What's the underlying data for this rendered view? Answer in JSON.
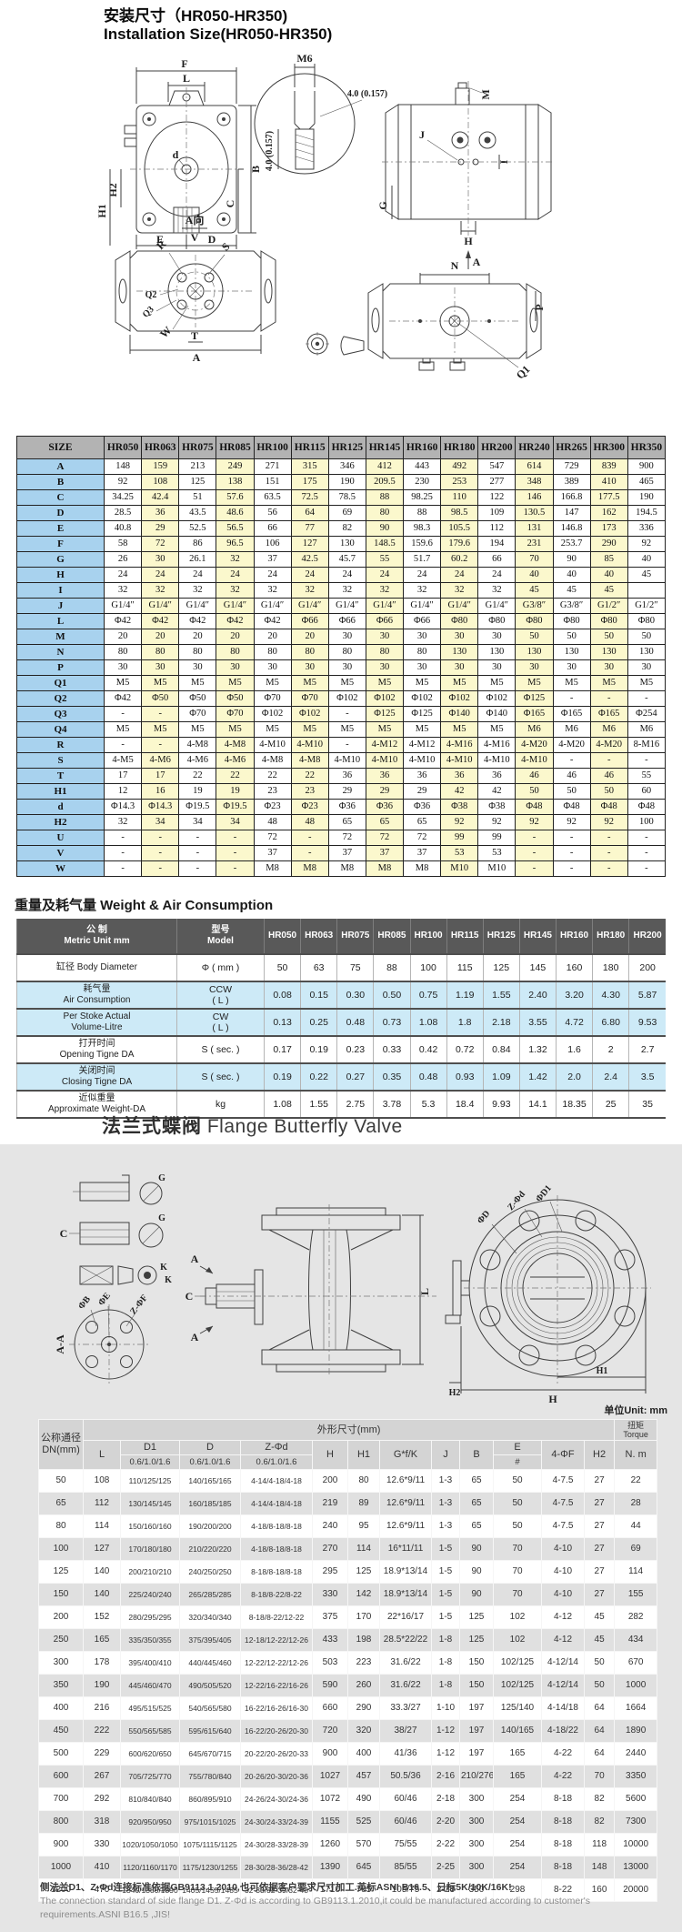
{
  "page": {
    "title_cn": "安装尺寸（HR050-HR350)",
    "title_en": "Installation Size(HR050-HR350)"
  },
  "colors": {
    "table_header_gray": "#b3b3b3",
    "row_label_blue": "#a8d2ee",
    "cell_yellow": "#fbf8cd",
    "weight_header_dark": "#595959",
    "weight_row_blue": "#cdeaf7",
    "panel_gray": "#e5e5e5",
    "dn_stripe_gray": "#e0e0e0"
  },
  "install_drawing": {
    "labels": {
      "f": "F",
      "l": "L",
      "b": "B",
      "c": "C",
      "d": "d",
      "h1": "H1",
      "h2": "H2",
      "e": "E",
      "dcol": "D",
      "m6": "M6",
      "dim": "4.0 (0.157)",
      "m": "M",
      "j": "J",
      "i": "I",
      "g": "G",
      "h": "H",
      "a": "A",
      "aview": "A向",
      "v": "V",
      "r": "R",
      "s": "S",
      "q1": "Q1",
      "q2": "Q2",
      "q3": "Q3",
      "w": "W",
      "t": "T",
      "n": "N",
      "p": "P"
    }
  },
  "size_table": {
    "header": [
      "SIZE",
      "HR050",
      "HR063",
      "HR075",
      "HR085",
      "HR100",
      "HR115",
      "HR125",
      "HR145",
      "HR160",
      "HR180",
      "HR200",
      "HR240",
      "HR265",
      "HR300",
      "HR350"
    ],
    "rows": [
      {
        "label": "A",
        "values": [
          "148",
          "159",
          "213",
          "249",
          "271",
          "315",
          "346",
          "412",
          "443",
          "492",
          "547",
          "614",
          "729",
          "839",
          "900"
        ]
      },
      {
        "label": "B",
        "values": [
          "92",
          "108",
          "125",
          "138",
          "151",
          "175",
          "190",
          "209.5",
          "230",
          "253",
          "277",
          "348",
          "389",
          "410",
          "465"
        ]
      },
      {
        "label": "C",
        "values": [
          "34.25",
          "42.4",
          "51",
          "57.6",
          "63.5",
          "72.5",
          "78.5",
          "88",
          "98.25",
          "110",
          "122",
          "146",
          "166.8",
          "177.5",
          "190"
        ]
      },
      {
        "label": "D",
        "values": [
          "28.5",
          "36",
          "43.5",
          "48.6",
          "56",
          "64",
          "69",
          "80",
          "88",
          "98.5",
          "109",
          "130.5",
          "147",
          "162",
          "194.5"
        ]
      },
      {
        "label": "E",
        "values": [
          "40.8",
          "29",
          "52.5",
          "56.5",
          "66",
          "77",
          "82",
          "90",
          "98.3",
          "105.5",
          "112",
          "131",
          "146.8",
          "173",
          "336"
        ]
      },
      {
        "label": "F",
        "values": [
          "58",
          "72",
          "86",
          "96.5",
          "106",
          "127",
          "130",
          "148.5",
          "159.6",
          "179.6",
          "194",
          "231",
          "253.7",
          "290",
          "92"
        ]
      },
      {
        "label": "G",
        "values": [
          "26",
          "30",
          "26.1",
          "32",
          "37",
          "42.5",
          "45.7",
          "55",
          "51.7",
          "60.2",
          "66",
          "70",
          "90",
          "85",
          "40"
        ]
      },
      {
        "label": "H",
        "values": [
          "24",
          "24",
          "24",
          "24",
          "24",
          "24",
          "24",
          "24",
          "24",
          "24",
          "24",
          "40",
          "40",
          "40",
          "45"
        ]
      },
      {
        "label": "I",
        "values": [
          "32",
          "32",
          "32",
          "32",
          "32",
          "32",
          "32",
          "32",
          "32",
          "32",
          "32",
          "45",
          "45",
          "45",
          ""
        ]
      },
      {
        "label": "J",
        "values": [
          "G1/4″",
          "G1/4″",
          "G1/4″",
          "G1/4″",
          "G1/4″",
          "G1/4″",
          "G1/4″",
          "G1/4″",
          "G1/4″",
          "G1/4″",
          "G1/4″",
          "G3/8″",
          "G3/8″",
          "G1/2″",
          "G1/2″"
        ]
      },
      {
        "label": "L",
        "values": [
          "Φ42",
          "Φ42",
          "Φ42",
          "Φ42",
          "Φ42",
          "Φ66",
          "Φ66",
          "Φ66",
          "Φ66",
          "Φ80",
          "Φ80",
          "Φ80",
          "Φ80",
          "Φ80",
          "Φ80"
        ]
      },
      {
        "label": "M",
        "values": [
          "20",
          "20",
          "20",
          "20",
          "20",
          "20",
          "30",
          "30",
          "30",
          "30",
          "30",
          "50",
          "50",
          "50",
          "50"
        ]
      },
      {
        "label": "N",
        "values": [
          "80",
          "80",
          "80",
          "80",
          "80",
          "80",
          "80",
          "80",
          "80",
          "130",
          "130",
          "130",
          "130",
          "130",
          "130"
        ]
      },
      {
        "label": "P",
        "values": [
          "30",
          "30",
          "30",
          "30",
          "30",
          "30",
          "30",
          "30",
          "30",
          "30",
          "30",
          "30",
          "30",
          "30",
          "30"
        ]
      },
      {
        "label": "Q1",
        "values": [
          "M5",
          "M5",
          "M5",
          "M5",
          "M5",
          "M5",
          "M5",
          "M5",
          "M5",
          "M5",
          "M5",
          "M5",
          "M5",
          "M5",
          "M5"
        ]
      },
      {
        "label": "Q2",
        "values": [
          "Φ42",
          "Φ50",
          "Φ50",
          "Φ50",
          "Φ70",
          "Φ70",
          "Φ102",
          "Φ102",
          "Φ102",
          "Φ102",
          "Φ102",
          "Φ125",
          "-",
          "-",
          "-"
        ]
      },
      {
        "label": "Q3",
        "values": [
          "-",
          "-",
          "Φ70",
          "Φ70",
          "Φ102",
          "Φ102",
          "-",
          "Φ125",
          "Φ125",
          "Φ140",
          "Φ140",
          "Φ165",
          "Φ165",
          "Φ165",
          "Φ254"
        ]
      },
      {
        "label": "Q4",
        "values": [
          "M5",
          "M5",
          "M5",
          "M5",
          "M5",
          "M5",
          "M5",
          "M5",
          "M5",
          "M5",
          "M5",
          "M6",
          "M6",
          "M6",
          "M6"
        ]
      },
      {
        "label": "R",
        "values": [
          "-",
          "-",
          "4-M8",
          "4-M8",
          "4-M10",
          "4-M10",
          "-",
          "4-M12",
          "4-M12",
          "4-M16",
          "4-M16",
          "4-M20",
          "4-M20",
          "4-M20",
          "8-M16"
        ]
      },
      {
        "label": "S",
        "values": [
          "4-M5",
          "4-M6",
          "4-M6",
          "4-M6",
          "4-M8",
          "4-M8",
          "4-M10",
          "4-M10",
          "4-M10",
          "4-M10",
          "4-M10",
          "4-M10",
          "-",
          "-",
          "-"
        ]
      },
      {
        "label": "T",
        "values": [
          "17",
          "17",
          "22",
          "22",
          "22",
          "22",
          "36",
          "36",
          "36",
          "36",
          "36",
          "46",
          "46",
          "46",
          "55"
        ]
      },
      {
        "label": "H1",
        "values": [
          "12",
          "16",
          "19",
          "19",
          "23",
          "23",
          "29",
          "29",
          "29",
          "42",
          "42",
          "50",
          "50",
          "50",
          "60"
        ]
      },
      {
        "label": "d",
        "values": [
          "Φ14.3",
          "Φ14.3",
          "Φ19.5",
          "Φ19.5",
          "Φ23",
          "Φ23",
          "Φ36",
          "Φ36",
          "Φ36",
          "Φ38",
          "Φ38",
          "Φ48",
          "Φ48",
          "Φ48",
          "Φ48"
        ]
      },
      {
        "label": "H2",
        "values": [
          "32",
          "34",
          "34",
          "34",
          "48",
          "48",
          "65",
          "65",
          "65",
          "92",
          "92",
          "92",
          "92",
          "92",
          "100"
        ]
      },
      {
        "label": "U",
        "values": [
          "-",
          "-",
          "-",
          "-",
          "72",
          "-",
          "72",
          "72",
          "72",
          "99",
          "99",
          "-",
          "-",
          "-",
          "-"
        ]
      },
      {
        "label": "V",
        "values": [
          "-",
          "-",
          "-",
          "-",
          "37",
          "-",
          "37",
          "37",
          "37",
          "53",
          "53",
          "-",
          "-",
          "-",
          "-"
        ]
      },
      {
        "label": "W",
        "values": [
          "-",
          "-",
          "-",
          "-",
          "M8",
          "M8",
          "M8",
          "M8",
          "M8",
          "M10",
          "M10",
          "-",
          "-",
          "-",
          "-"
        ]
      }
    ]
  },
  "weight_section": {
    "title": "重量及耗气量 Weight & Air Consumption",
    "table": {
      "h1_cn": "公 制",
      "h1_en": "Metric Unit mm",
      "h2_cn": "型号",
      "h2_en": "Model",
      "models": [
        "HR050",
        "HR063",
        "HR075",
        "HR085",
        "HR100",
        "HR115",
        "HR125",
        "HR145",
        "HR160",
        "HR180",
        "HR200"
      ],
      "rows": [
        {
          "name_lines": [
            "缸径 Body Diameter"
          ],
          "unit_lines": [
            "Φ ( mm )"
          ],
          "blue": false,
          "values": [
            "50",
            "63",
            "75",
            "88",
            "100",
            "115",
            "125",
            "145",
            "160",
            "180",
            "200"
          ]
        },
        {
          "name_lines": [
            "耗气量",
            "Air Consumption"
          ],
          "unit_lines": [
            "CCW",
            "( L )"
          ],
          "blue": true,
          "values": [
            "0.08",
            "0.15",
            "0.30",
            "0.50",
            "0.75",
            "1.19",
            "1.55",
            "2.40",
            "3.20",
            "4.30",
            "5.87"
          ]
        },
        {
          "name_lines": [
            "Per Stoke Actual",
            "Volume-Litre"
          ],
          "unit_lines": [
            "CW",
            "( L )"
          ],
          "blue": true,
          "values": [
            "0.13",
            "0.25",
            "0.48",
            "0.73",
            "1.08",
            "1.8",
            "2.18",
            "3.55",
            "4.72",
            "6.80",
            "9.53"
          ]
        },
        {
          "name_lines": [
            "打开时间",
            "Opening Tigne DA"
          ],
          "unit_lines": [
            "S ( sec. )"
          ],
          "blue": false,
          "values": [
            "0.17",
            "0.19",
            "0.23",
            "0.33",
            "0.42",
            "0.72",
            "0.84",
            "1.32",
            "1.6",
            "2",
            "2.7"
          ]
        },
        {
          "name_lines": [
            "关闭时间",
            "Closing Tigne DA"
          ],
          "unit_lines": [
            "S ( sec. )"
          ],
          "blue": true,
          "values": [
            "0.19",
            "0.22",
            "0.27",
            "0.35",
            "0.48",
            "0.93",
            "1.09",
            "1.42",
            "2.0",
            "2.4",
            "3.5"
          ]
        },
        {
          "name_lines": [
            "近似重量",
            "Approximate Weight-DA"
          ],
          "unit_lines": [
            "kg"
          ],
          "blue": false,
          "values": [
            "1.08",
            "1.55",
            "2.75",
            "3.78",
            "5.3",
            "18.4",
            "9.93",
            "14.1",
            "18.35",
            "25",
            "35"
          ]
        }
      ]
    }
  },
  "valve_section": {
    "title_cn": "法兰式蝶阀",
    "title_en": "Flange Butterfly Valve",
    "unit_note": "单位Unit: mm"
  },
  "valve_drawing": {
    "labels": {
      "aa": "A-A",
      "phib": "ΦB",
      "phie": "ΦE",
      "zphif": "Z-ΦF",
      "c": "C",
      "g": "G",
      "k": "K",
      "l": "L",
      "a": "A",
      "phid": "ΦD",
      "zphid": "Z-Φd",
      "phid1": "ΦD1",
      "h1": "H1",
      "h2": "H2",
      "h": "H"
    }
  },
  "dn_table": {
    "header": {
      "dn_cn": "公称通径",
      "dn_en": "DN(mm)",
      "group": "外形尺寸(mm)",
      "torque_cn": "扭矩",
      "torque_en": "Torque",
      "c_l": "L",
      "c_d1": "D1",
      "c_d": "D",
      "c_zphid": "Z-Φd",
      "c_h": "H",
      "c_h1": "H1",
      "c_gfk": "G*f/K",
      "c_j": "J",
      "c_b": "B",
      "c_e": "E",
      "c_4phif": "4-ΦF",
      "c_h2": "H2",
      "c_nm": "N. m",
      "sub1": "0.6/1.0/1.6",
      "sub2": "0.6/1.0/1.6",
      "sub3": "0.6/1.0/1.6",
      "e_sub": "#"
    },
    "rows": [
      [
        "50",
        "108",
        "110/125/125",
        "140/165/165",
        "4-14/4-18/4-18",
        "200",
        "80",
        "12.6*9/11",
        "1-3",
        "65",
        "50",
        "4-7.5",
        "27",
        "22"
      ],
      [
        "65",
        "112",
        "130/145/145",
        "160/185/185",
        "4-14/4-18/4-18",
        "219",
        "89",
        "12.6*9/11",
        "1-3",
        "65",
        "50",
        "4-7.5",
        "27",
        "28"
      ],
      [
        "80",
        "114",
        "150/160/160",
        "190/200/200",
        "4-18/8-18/8-18",
        "240",
        "95",
        "12.6*9/11",
        "1-3",
        "65",
        "50",
        "4-7.5",
        "27",
        "44"
      ],
      [
        "100",
        "127",
        "170/180/180",
        "210/220/220",
        "4-18/8-18/8-18",
        "270",
        "114",
        "16*11/11",
        "1-5",
        "90",
        "70",
        "4-10",
        "27",
        "69"
      ],
      [
        "125",
        "140",
        "200/210/210",
        "240/250/250",
        "8-18/8-18/8-18",
        "295",
        "125",
        "18.9*13/14",
        "1-5",
        "90",
        "70",
        "4-10",
        "27",
        "114"
      ],
      [
        "150",
        "140",
        "225/240/240",
        "265/285/285",
        "8-18/8-22/8-22",
        "330",
        "142",
        "18.9*13/14",
        "1-5",
        "90",
        "70",
        "4-10",
        "27",
        "155"
      ],
      [
        "200",
        "152",
        "280/295/295",
        "320/340/340",
        "8-18/8-22/12-22",
        "375",
        "170",
        "22*16/17",
        "1-5",
        "125",
        "102",
        "4-12",
        "45",
        "282"
      ],
      [
        "250",
        "165",
        "335/350/355",
        "375/395/405",
        "12-18/12-22/12-26",
        "433",
        "198",
        "28.5*22/22",
        "1-8",
        "125",
        "102",
        "4-12",
        "45",
        "434"
      ],
      [
        "300",
        "178",
        "395/400/410",
        "440/445/460",
        "12-22/12-22/12-26",
        "503",
        "223",
        "31.6/22",
        "1-8",
        "150",
        "102/125",
        "4-12/14",
        "50",
        "670"
      ],
      [
        "350",
        "190",
        "445/460/470",
        "490/505/520",
        "12-22/16-22/16-26",
        "590",
        "260",
        "31.6/22",
        "1-8",
        "150",
        "102/125",
        "4-12/14",
        "50",
        "1000"
      ],
      [
        "400",
        "216",
        "495/515/525",
        "540/565/580",
        "16-22/16-26/16-30",
        "660",
        "290",
        "33.3/27",
        "1-10",
        "197",
        "125/140",
        "4-14/18",
        "64",
        "1664"
      ],
      [
        "450",
        "222",
        "550/565/585",
        "595/615/640",
        "16-22/20-26/20-30",
        "720",
        "320",
        "38/27",
        "1-12",
        "197",
        "140/165",
        "4-18/22",
        "64",
        "1890"
      ],
      [
        "500",
        "229",
        "600/620/650",
        "645/670/715",
        "20-22/20-26/20-33",
        "900",
        "400",
        "41/36",
        "1-12",
        "197",
        "165",
        "4-22",
        "64",
        "2440"
      ],
      [
        "600",
        "267",
        "705/725/770",
        "755/780/840",
        "20-26/20-30/20-36",
        "1027",
        "457",
        "50.5/36",
        "2-16",
        "210/276",
        "165",
        "4-22",
        "70",
        "3350"
      ],
      [
        "700",
        "292",
        "810/840/840",
        "860/895/910",
        "24-26/24-30/24-36",
        "1072",
        "490",
        "60/46",
        "2-18",
        "300",
        "254",
        "8-18",
        "82",
        "5600"
      ],
      [
        "800",
        "318",
        "920/950/950",
        "975/1015/1025",
        "24-30/24-33/24-39",
        "1155",
        "525",
        "60/46",
        "2-20",
        "300",
        "254",
        "8-18",
        "82",
        "7300"
      ],
      [
        "900",
        "330",
        "1020/1050/1050",
        "1075/1115/1125",
        "24-30/28-33/28-39",
        "1260",
        "570",
        "75/55",
        "2-22",
        "300",
        "254",
        "8-18",
        "118",
        "10000"
      ],
      [
        "1000",
        "410",
        "1120/1160/1170",
        "1175/1230/1255",
        "28-30/28-36/28-42",
        "1390",
        "645",
        "85/55",
        "2-25",
        "300",
        "254",
        "8-18",
        "148",
        "13000"
      ],
      [
        "1200",
        "470",
        "1340/1380/1390",
        "1405/1455/1485",
        "32-33/32-39/32-48",
        "1710",
        "785",
        "105/75",
        "2-28",
        "350",
        "298",
        "8-22",
        "160",
        "20000"
      ]
    ]
  },
  "footnote": {
    "cn": "侧法兰D1、Z-Φd连接标准依据GB9113.1.2010,也可依据客户要求尺寸加工.英标ASNI B16.5、日标5K/10K/16K!",
    "en": "The connection standard of side flange D1. Z-Φd is according to GB9113.1.2010,it could be manufactured according to customer's requirements.ASNI B16.5 ,JIS!"
  }
}
